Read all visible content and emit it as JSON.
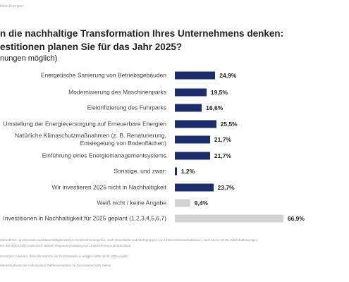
{
  "header": {
    "source": "ltiken Energien"
  },
  "chart_data": {
    "type": "bar",
    "orientation": "horizontal",
    "title": "n die nachhaltige Transformation Ihres Unternehmens denken:",
    "subtitle": "estitionen planen Sie für das Jahr 2025?",
    "note": "nungen möglich)",
    "categories": [
      "Energetische Sanierung von Betriebsgebäuden",
      "Modernisierung des Maschinenparks",
      "Elektrifizierung des Fuhrparks",
      "Umstellung der Energieversorgung auf Erneuerbare Energien",
      "Natürliche Klimaschutzmaßnahmen (z. B. Renaturierung,\nEntsiegelung von Bodenflächen)",
      "Einführung eines Energiemanagementsystems",
      "Sonstige, und zwar:",
      "Wir investieren 2025 nicht in Nachhaltigkeit",
      "Weiß nicht / keine Angabe",
      "Investitionen in Nachhaltigkeit für 2025 geplant (1,2,3,4,5,6,7)"
    ],
    "values": [
      24.9,
      19.5,
      16.6,
      25.5,
      21.7,
      21.7,
      1.2,
      23.7,
      9.4,
      66.9
    ],
    "value_labels": [
      "24,9%",
      "19,5%",
      "16,6%",
      "25,5%",
      "21,7%",
      "21,7%",
      "1,2%",
      "23,7%",
      "9,4%",
      "66,9%"
    ],
    "colors": [
      "#1d2d6b",
      "#1d2d6b",
      "#1d2d6b",
      "#1d2d6b",
      "#1d2d6b",
      "#1d2d6b",
      "#1d2d6b",
      "#1d2d6b",
      "#d3d3d3",
      "#d3d3d3"
    ],
    "xlim": [
      0,
      100
    ],
    "footnotes": [
      "nternehmer, repräsentativ nach Beschäftigtenzahl pro Unternehmensgröße, nach Geschlecht und Altersgruppen von Unternehmensinhabenden, nach sechs NACE-Wirtschaftszweigen",
      "ten der Wirtschaft) sowie nach Nielsen-Regionenverteilung von Unternehmen in Deutschland.",
      "ennungen zulassen, dass die Summe der Prozentwerte in einigen Fällen nicht 100% ergibt.",
      "Marketingfonds der Volksbanken Raiffeisenbanken im Genossenschafts-Sektor."
    ]
  }
}
